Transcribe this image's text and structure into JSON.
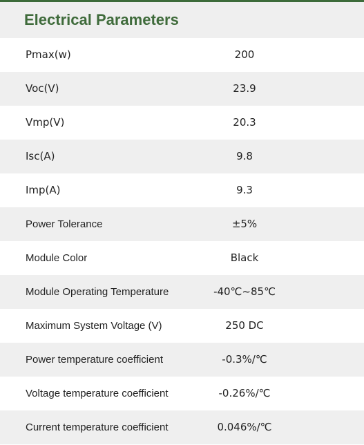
{
  "header": {
    "title": "Electrical Parameters"
  },
  "table": {
    "rows": [
      [
        "Pmax(w)",
        "200"
      ],
      [
        "Voc(V)",
        "23.9"
      ],
      [
        "Vmp(V)",
        "20.3"
      ],
      [
        "Isc(A)",
        "9.8"
      ],
      [
        "Imp(A)",
        "9.3"
      ],
      [
        "Power Tolerance",
        "±5%"
      ],
      [
        "Module Color",
        "Black"
      ],
      [
        "Module Operating Temperature",
        "-40℃~85℃"
      ],
      [
        "Maximum System Voltage (V)",
        "250 DC"
      ],
      [
        "Power temperature coefficient",
        "-0.3%/℃"
      ],
      [
        "Voltage temperature coefficient",
        "-0.26%/℃"
      ],
      [
        "Current temperature coefficient",
        "0.046%/℃"
      ]
    ]
  }
}
